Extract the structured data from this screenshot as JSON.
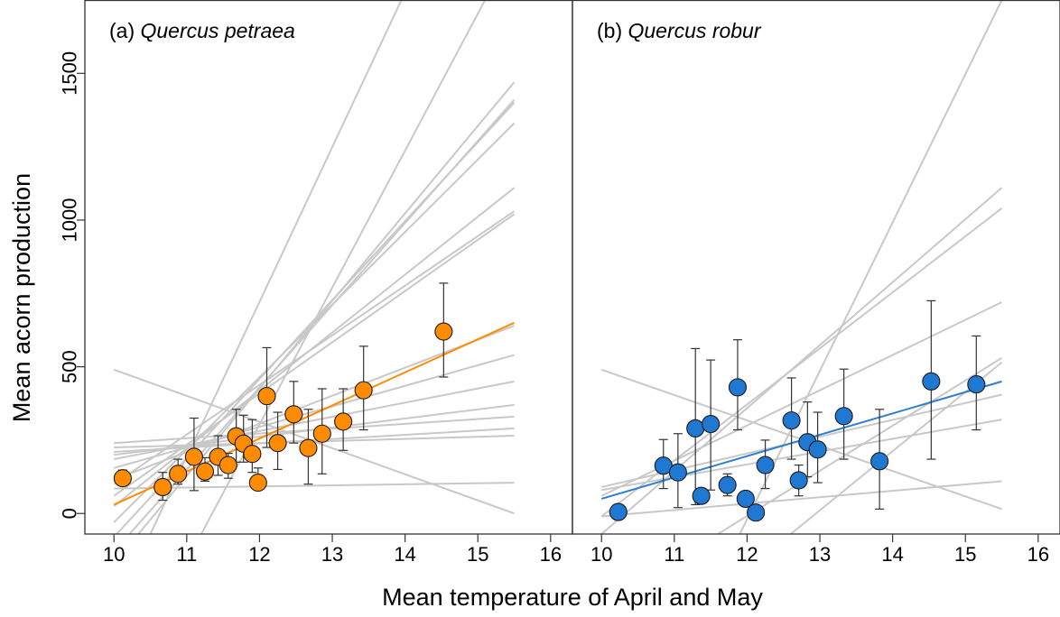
{
  "figure": {
    "ylabel": "Mean acorn production",
    "xlabel": "Mean temperature of April and May"
  },
  "chart_data": [
    {
      "type": "scatter",
      "panel": "a",
      "title_prefix": "(a) ",
      "title_species": "Quercus petraea",
      "xlim": [
        9.6,
        16.3
      ],
      "ylim": [
        -70,
        1750
      ],
      "xticks": [
        10,
        11,
        12,
        13,
        14,
        15,
        16
      ],
      "yticks": [
        0,
        500,
        1000,
        1500
      ],
      "point_color": "#FF8C00",
      "fit_color": "#FF8C00",
      "bg_line_color": "#C8C8C8",
      "points": [
        {
          "x": 10.12,
          "y": 120,
          "lo": 95,
          "hi": 148
        },
        {
          "x": 10.67,
          "y": 90,
          "lo": 45,
          "hi": 140
        },
        {
          "x": 10.88,
          "y": 135,
          "lo": 100,
          "hi": 185
        },
        {
          "x": 11.1,
          "y": 193,
          "lo": 78,
          "hi": 325
        },
        {
          "x": 11.25,
          "y": 143,
          "lo": 110,
          "hi": 190
        },
        {
          "x": 11.43,
          "y": 193,
          "lo": 130,
          "hi": 265
        },
        {
          "x": 11.57,
          "y": 165,
          "lo": 120,
          "hi": 205
        },
        {
          "x": 11.68,
          "y": 263,
          "lo": 175,
          "hi": 355
        },
        {
          "x": 11.78,
          "y": 238,
          "lo": 175,
          "hi": 335
        },
        {
          "x": 11.9,
          "y": 203,
          "lo": 140,
          "hi": 320
        },
        {
          "x": 11.98,
          "y": 105,
          "lo": 85,
          "hi": 155
        },
        {
          "x": 12.1,
          "y": 400,
          "lo": 225,
          "hi": 565
        },
        {
          "x": 12.25,
          "y": 240,
          "lo": 150,
          "hi": 345
        },
        {
          "x": 12.47,
          "y": 338,
          "lo": 240,
          "hi": 450
        },
        {
          "x": 12.67,
          "y": 223,
          "lo": 100,
          "hi": 355
        },
        {
          "x": 12.86,
          "y": 272,
          "lo": 135,
          "hi": 425
        },
        {
          "x": 13.15,
          "y": 313,
          "lo": 215,
          "hi": 425
        },
        {
          "x": 13.43,
          "y": 420,
          "lo": 285,
          "hi": 570
        },
        {
          "x": 14.53,
          "y": 620,
          "lo": 465,
          "hi": 785
        }
      ],
      "fit_line": {
        "x": [
          10.0,
          15.5
        ],
        "y": [
          30,
          650
        ]
      },
      "bg_lines": [
        {
          "x": [
            10.0,
            15.5
          ],
          "y": [
            490,
            0
          ]
        },
        {
          "x": [
            10.0,
            15.5
          ],
          "y": [
            85,
            105
          ]
        },
        {
          "x": [
            10.0,
            15.5
          ],
          "y": [
            225,
            265
          ]
        },
        {
          "x": [
            10.0,
            15.5
          ],
          "y": [
            210,
            290
          ]
        },
        {
          "x": [
            10.0,
            15.5
          ],
          "y": [
            240,
            330
          ]
        },
        {
          "x": [
            10.0,
            15.5
          ],
          "y": [
            200,
            370
          ]
        },
        {
          "x": [
            10.0,
            15.5
          ],
          "y": [
            185,
            450
          ]
        },
        {
          "x": [
            10.0,
            15.5
          ],
          "y": [
            155,
            540
          ]
        },
        {
          "x": [
            10.0,
            15.5
          ],
          "y": [
            115,
            640
          ]
        },
        {
          "x": [
            10.0,
            15.5
          ],
          "y": [
            60,
            1020
          ]
        },
        {
          "x": [
            10.0,
            15.5
          ],
          "y": [
            100,
            1030
          ]
        },
        {
          "x": [
            10.0,
            15.5
          ],
          "y": [
            25,
            1110
          ]
        },
        {
          "x": [
            10.0,
            15.5
          ],
          "y": [
            -30,
            1330
          ]
        },
        {
          "x": [
            10.0,
            15.5
          ],
          "y": [
            -80,
            1400
          ]
        },
        {
          "x": [
            10.0,
            15.5
          ],
          "y": [
            -130,
            1410
          ]
        },
        {
          "x": [
            10.0,
            15.5
          ],
          "y": [
            -170,
            1470
          ]
        },
        {
          "x": [
            10.5,
            13.95
          ],
          "y": [
            -70,
            1750
          ]
        },
        {
          "x": [
            11.2,
            15.1
          ],
          "y": [
            -70,
            1750
          ]
        }
      ]
    },
    {
      "type": "scatter",
      "panel": "b",
      "title_prefix": "(b) ",
      "title_species": "Quercus robur",
      "xlim": [
        9.6,
        16.3
      ],
      "ylim": [
        -70,
        1750
      ],
      "xticks": [
        10,
        11,
        12,
        13,
        14,
        15,
        16
      ],
      "yticks": [],
      "point_color": "#1F78D1",
      "fit_color": "#2F7FD0",
      "bg_line_color": "#C8C8C8",
      "points": [
        {
          "x": 10.23,
          "y": 5,
          "lo": null,
          "hi": null
        },
        {
          "x": 10.85,
          "y": 163,
          "lo": 85,
          "hi": 252
        },
        {
          "x": 11.05,
          "y": 140,
          "lo": 20,
          "hi": 272
        },
        {
          "x": 11.29,
          "y": 290,
          "lo": 30,
          "hi": 562
        },
        {
          "x": 11.37,
          "y": 60,
          "lo": 40,
          "hi": 80
        },
        {
          "x": 11.5,
          "y": 305,
          "lo": 80,
          "hi": 523
        },
        {
          "x": 11.73,
          "y": 97,
          "lo": 60,
          "hi": 135
        },
        {
          "x": 11.87,
          "y": 430,
          "lo": 285,
          "hi": 592
        },
        {
          "x": 11.98,
          "y": 50,
          "lo": null,
          "hi": null
        },
        {
          "x": 12.12,
          "y": 3,
          "lo": null,
          "hi": null
        },
        {
          "x": 12.25,
          "y": 165,
          "lo": 85,
          "hi": 250
        },
        {
          "x": 12.61,
          "y": 317,
          "lo": 185,
          "hi": 462
        },
        {
          "x": 12.71,
          "y": 113,
          "lo": 60,
          "hi": 165
        },
        {
          "x": 12.83,
          "y": 243,
          "lo": 125,
          "hi": 380
        },
        {
          "x": 12.97,
          "y": 218,
          "lo": 105,
          "hi": 345
        },
        {
          "x": 13.33,
          "y": 332,
          "lo": 185,
          "hi": 492
        },
        {
          "x": 13.82,
          "y": 178,
          "lo": 15,
          "hi": 355
        },
        {
          "x": 14.53,
          "y": 450,
          "lo": 185,
          "hi": 725
        },
        {
          "x": 15.15,
          "y": 440,
          "lo": 285,
          "hi": 605
        }
      ],
      "fit_line": {
        "x": [
          10.0,
          15.5
        ],
        "y": [
          50,
          450
        ]
      },
      "bg_lines": [
        {
          "x": [
            10.0,
            15.5
          ],
          "y": [
            490,
            15
          ]
        },
        {
          "x": [
            10.0,
            15.5
          ],
          "y": [
            -10,
            110
          ]
        },
        {
          "x": [
            10.0,
            15.5
          ],
          "y": [
            80,
            320
          ]
        },
        {
          "x": [
            10.0,
            15.5
          ],
          "y": [
            90,
            405
          ]
        },
        {
          "x": [
            10.0,
            15.5
          ],
          "y": [
            60,
            720
          ]
        },
        {
          "x": [
            10.0,
            15.5
          ],
          "y": [
            -10,
            1040
          ]
        },
        {
          "x": [
            10.0,
            15.5
          ],
          "y": [
            -70,
            1110
          ]
        },
        {
          "x": [
            11.6,
            15.5
          ],
          "y": [
            -70,
            530
          ]
        },
        {
          "x": [
            12.6,
            15.5
          ],
          "y": [
            -70,
            515
          ]
        },
        {
          "x": [
            11.9,
            15.5
          ],
          "y": [
            -70,
            1750
          ]
        }
      ]
    }
  ]
}
